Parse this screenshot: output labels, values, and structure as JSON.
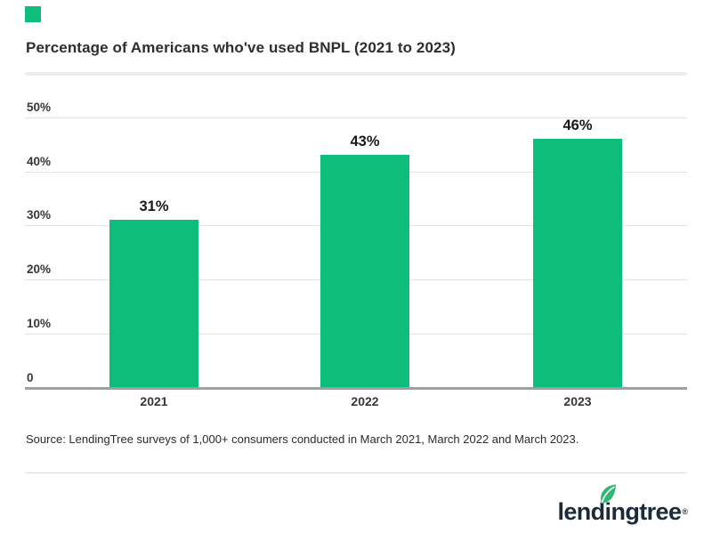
{
  "accent_color": "#0DBE7B",
  "header": {
    "title": "Percentage of Americans who've used BNPL (2021 to 2023)"
  },
  "chart_data": {
    "type": "bar",
    "title": "Percentage of Americans who've used BNPL (2021 to 2023)",
    "categories": [
      "2021",
      "2022",
      "2023"
    ],
    "values": [
      31,
      43,
      46
    ],
    "value_labels": [
      "31%",
      "43%",
      "46%"
    ],
    "y_ticks": [
      "50%",
      "40%",
      "30%",
      "20%",
      "10%",
      "0"
    ],
    "y_tick_values": [
      50,
      40,
      30,
      20,
      10,
      0
    ],
    "ylim": [
      0,
      50
    ],
    "bar_color": "#0DBE7B",
    "grid": true,
    "legend": "none",
    "xlabel": "",
    "ylabel": ""
  },
  "source": {
    "text": "Source: LendingTree surveys of 1,000+ consumers conducted in March 2021, March 2022 and March 2023."
  },
  "logo": {
    "text": "lendingtree",
    "registered": "®",
    "navy_color": "#1b2b3a",
    "leaf_color": "#2eb872"
  }
}
